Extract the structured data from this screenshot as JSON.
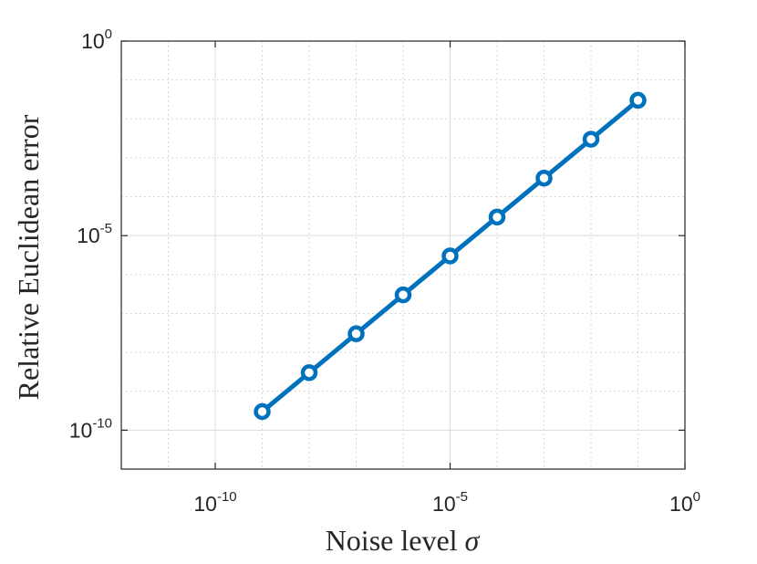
{
  "chart_data": {
    "type": "line",
    "xscale": "log",
    "yscale": "log",
    "xlabel": "Noise level",
    "xlabel_symbol": "σ",
    "ylabel": "Relative Euclidean error",
    "xlim": [
      1e-12,
      1
    ],
    "ylim": [
      1e-11,
      1
    ],
    "grid": true,
    "minor_grid": true,
    "legend": "none",
    "x_ticks": [
      {
        "base": "10",
        "exp": "-10",
        "value": 1e-10
      },
      {
        "base": "10",
        "exp": "-5",
        "value": 1e-05
      },
      {
        "base": "10",
        "exp": "0",
        "value": 1
      }
    ],
    "y_ticks": [
      {
        "base": "10",
        "exp": "-10",
        "value": 1e-10
      },
      {
        "base": "10",
        "exp": "-5",
        "value": 1e-05
      },
      {
        "base": "10",
        "exp": "0",
        "value": 1
      }
    ],
    "series": [
      {
        "color": "#0072BD",
        "marker": "circle",
        "x": [
          1e-09,
          1e-08,
          1e-07,
          1e-06,
          1e-05,
          0.0001,
          0.001,
          0.01,
          0.1
        ],
        "y": [
          3e-10,
          3e-09,
          3e-08,
          3e-07,
          3e-06,
          3e-05,
          0.0003,
          0.003,
          0.03
        ]
      }
    ]
  }
}
